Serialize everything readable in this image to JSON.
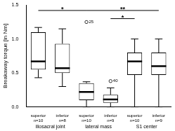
{
  "chart_data": {
    "type": "boxplot",
    "y_label": "Breakaway torque [in Nm]",
    "categories": [
      [
        "superior",
        "n=10"
      ],
      [
        "inferior",
        "n=8"
      ],
      [
        "superior",
        "n=10"
      ],
      [
        "inferior",
        "n=9"
      ],
      [
        "superior",
        "n=10"
      ],
      [
        "inferior",
        "n=9"
      ]
    ],
    "group_labels": [
      "iliosacral joint",
      "lateral mass",
      "S1 center"
    ],
    "boxes": [
      {
        "min": 0.43,
        "q1": 0.55,
        "median": 0.67,
        "q3": 1.1,
        "max": 1.17,
        "outliers": []
      },
      {
        "min": 0.3,
        "q1": 0.5,
        "median": 0.57,
        "q3": 0.93,
        "max": 1.15,
        "outliers": []
      },
      {
        "min": 0.0,
        "q1": 0.1,
        "median": 0.22,
        "q3": 0.35,
        "max": 0.37,
        "outliers": [
          {
            "value": 1.25,
            "label": "25"
          }
        ]
      },
      {
        "min": 0.0,
        "q1": 0.06,
        "median": 0.11,
        "q3": 0.18,
        "max": 0.28,
        "outliers": [
          {
            "value": 0.38,
            "label": "40"
          }
        ]
      },
      {
        "min": 0.0,
        "q1": 0.47,
        "median": 0.67,
        "q3": 0.8,
        "max": 1.0,
        "outliers": []
      },
      {
        "min": 0.0,
        "q1": 0.47,
        "median": 0.6,
        "q3": 0.8,
        "max": 1.0,
        "outliers": []
      }
    ],
    "annotations": [
      {
        "text": "*",
        "from": 0,
        "to": 2,
        "y": 1.42
      },
      {
        "text": "**",
        "from": 2,
        "to": 5,
        "y": 1.42
      },
      {
        "text": "*",
        "from": 3,
        "to": 4,
        "y": 1.3
      }
    ],
    "color": "#ffffff",
    "edge_color": "#000000",
    "ylim": [
      0,
      1.5
    ],
    "yticks": [
      {
        "value": 0,
        "label": "0.0"
      },
      {
        "value": 0.5,
        "label": "0.5"
      },
      {
        "value": 1,
        "label": "1.0"
      },
      {
        "value": 1.5,
        "label": "1.5"
      }
    ],
    "grid": false
  }
}
